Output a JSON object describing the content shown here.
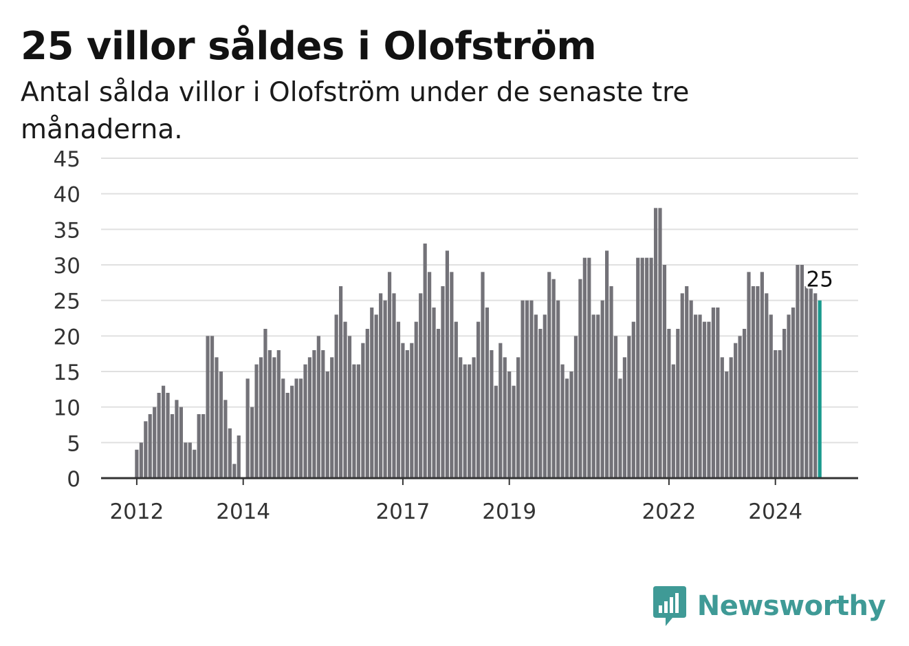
{
  "title": "25 villor såldes i Olofström",
  "subtitle": "Antal sålda villor i Olofström under de senaste tre månaderna.",
  "brand": {
    "name": "Newsworthy",
    "icon": "newsworthy-logo-icon",
    "color": "#3f9a96"
  },
  "colors": {
    "bar": "#737278",
    "highlight": "#1a9a8e",
    "grid": "#e0e0e0",
    "axis": "#333333"
  },
  "chart_data": {
    "type": "bar",
    "ylim": [
      0,
      45
    ],
    "yticks": [
      0,
      5,
      10,
      15,
      20,
      25,
      30,
      35,
      40,
      45
    ],
    "xtick_labels": [
      {
        "label": "2012",
        "index": 0
      },
      {
        "label": "2014",
        "index": 24
      },
      {
        "label": "2017",
        "index": 60
      },
      {
        "label": "2019",
        "index": 84
      },
      {
        "label": "2022",
        "index": 120
      },
      {
        "label": "2024",
        "index": 144
      }
    ],
    "grid": true,
    "last_value_label": "25",
    "series": [
      {
        "name": "",
        "start": "2012-01",
        "values": [
          4,
          5,
          8,
          9,
          10,
          12,
          13,
          12,
          9,
          11,
          10,
          5,
          5,
          4,
          9,
          9,
          20,
          20,
          17,
          15,
          11,
          7,
          2,
          6,
          0,
          14,
          10,
          16,
          17,
          21,
          18,
          17,
          18,
          14,
          12,
          13,
          14,
          14,
          16,
          17,
          18,
          20,
          18,
          15,
          17,
          23,
          27,
          22,
          20,
          16,
          16,
          19,
          21,
          24,
          23,
          26,
          25,
          29,
          26,
          22,
          19,
          18,
          19,
          22,
          26,
          33,
          29,
          24,
          21,
          27,
          32,
          29,
          22,
          17,
          16,
          16,
          17,
          22,
          29,
          24,
          18,
          13,
          19,
          17,
          15,
          13,
          17,
          25,
          25,
          25,
          23,
          21,
          23,
          29,
          28,
          25,
          16,
          14,
          15,
          20,
          28,
          31,
          31,
          23,
          23,
          25,
          32,
          27,
          20,
          14,
          17,
          20,
          22,
          31,
          31,
          31,
          31,
          38,
          38,
          30,
          21,
          16,
          21,
          26,
          27,
          25,
          23,
          23,
          22,
          22,
          24,
          24,
          17,
          15,
          17,
          19,
          20,
          21,
          29,
          27,
          27,
          29,
          26,
          23,
          18,
          18,
          21,
          23,
          24,
          30,
          30,
          27,
          27,
          26,
          25
        ]
      }
    ]
  }
}
